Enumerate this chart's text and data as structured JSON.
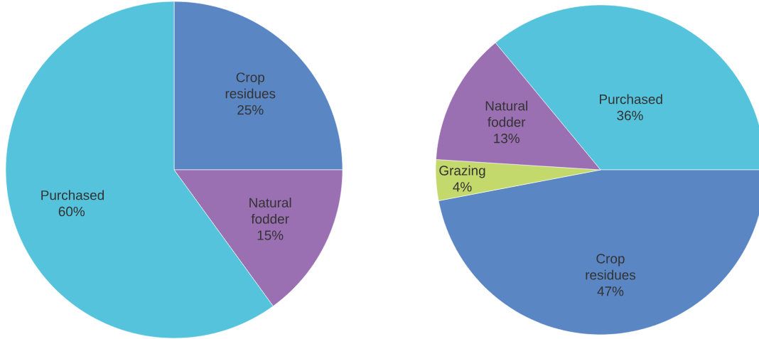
{
  "chart_data": [
    {
      "type": "pie",
      "categories": [
        "Crop residues",
        "Natural fodder",
        "Purchased"
      ],
      "values": [
        25,
        15,
        60
      ],
      "value_labels": [
        "25%",
        "15%",
        "60%"
      ],
      "colors": [
        "#5a86c4",
        "#9a70b2",
        "#55c3db"
      ]
    },
    {
      "type": "pie",
      "categories": [
        "Purchased",
        "Crop residues",
        "Grazing",
        "Natural fodder"
      ],
      "values": [
        36,
        47,
        4,
        13
      ],
      "value_labels": [
        "36%",
        "47%",
        "4%",
        "13%"
      ],
      "colors": [
        "#55c3db",
        "#5a86c4",
        "#c3d96b",
        "#9a70b2"
      ]
    }
  ]
}
